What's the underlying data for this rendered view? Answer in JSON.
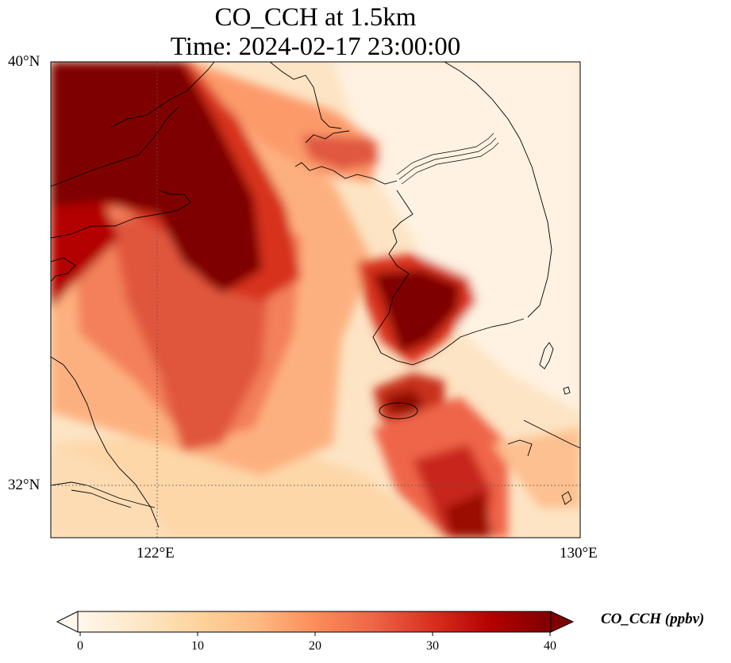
{
  "title": {
    "line1": "CO_CCH at 1.5km",
    "line2": "Time: 2024-02-17 23:00:00"
  },
  "variable": "CO_CCH",
  "units": "ppbv",
  "axes": {
    "lat_ticks": [
      {
        "value": 40,
        "label": "40°N"
      },
      {
        "value": 32,
        "label": "32°N"
      }
    ],
    "lon_ticks": [
      {
        "value": 122,
        "label": "122°E"
      },
      {
        "value": 130,
        "label": "130°E"
      }
    ],
    "extent": {
      "lon_min": 120,
      "lon_max": 130,
      "lat_min": 31,
      "lat_max": 40
    },
    "gridlines": "dotted at 122°E and 32°N"
  },
  "colorbar": {
    "label": "CO_CCH (ppbv)",
    "ticks": [
      "0",
      "10",
      "20",
      "30",
      "40"
    ],
    "min": 0,
    "max": 40,
    "colormap": "OrRd",
    "extend": "both",
    "colors": [
      "#fff7ec",
      "#fee8c8",
      "#fdd49e",
      "#fdbb84",
      "#fc8d59",
      "#ef6548",
      "#d7301f",
      "#b30000",
      "#7f0000"
    ]
  },
  "chart_data": {
    "type": "heatmap",
    "title": "CO_CCH at 1.5km\nTime: 2024-02-17 23:00:00",
    "colorbar_label": "CO_CCH (ppbv)",
    "range": [
      0,
      40
    ],
    "x_extent_lon": [
      120,
      130
    ],
    "y_extent_lat": [
      31,
      40
    ],
    "regions": [
      {
        "area": "NW corner (Bohai / Liaodong, ~120-121.5°E, 37-40°N)",
        "value": 40
      },
      {
        "area": "Shandong plume (~122-124°E, 35-37.5°N)",
        "value": 38
      },
      {
        "area": "Yellow Sea band (~121-124°E, 33-36°N)",
        "value": 28
      },
      {
        "area": "SW Korea (~126-127.5°E, 34.5-36°N)",
        "value": 40
      },
      {
        "area": "Jeju vicinity (~126.3-127°E, 33.2-33.6°N)",
        "value": 36
      },
      {
        "area": "East China Sea plume (~127-128.5°E, 31-33°N)",
        "value": 32
      },
      {
        "area": "Korea interior / East Sea (~127-130°E, 35-40°N)",
        "value": 2
      }
    ]
  }
}
